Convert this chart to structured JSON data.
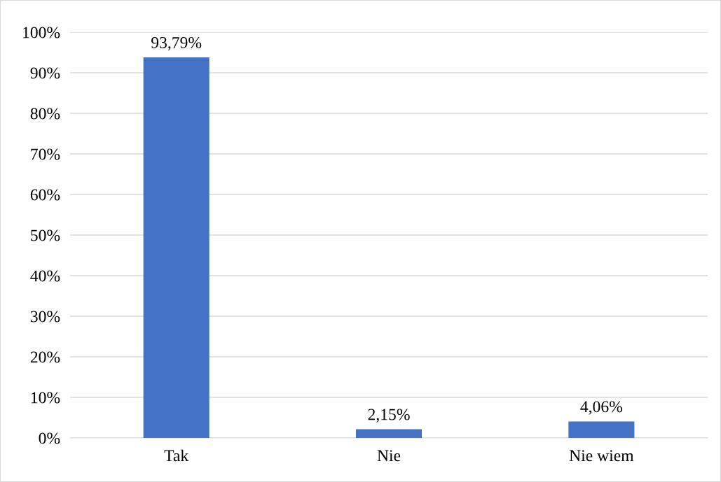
{
  "chart_data": {
    "type": "bar",
    "categories": [
      "Tak",
      "Nie",
      "Nie wiem"
    ],
    "values": [
      93.79,
      2.15,
      4.06
    ],
    "value_labels": [
      "93,79%",
      "2,15%",
      "4,06%"
    ],
    "color": "#4472c4",
    "ylim": [
      0,
      100
    ],
    "yticks": [
      {
        "value": 0,
        "label": "0%"
      },
      {
        "value": 10,
        "label": "10%"
      },
      {
        "value": 20,
        "label": "20%"
      },
      {
        "value": 30,
        "label": "30%"
      },
      {
        "value": 40,
        "label": "40%"
      },
      {
        "value": 50,
        "label": "50%"
      },
      {
        "value": 60,
        "label": "60%"
      },
      {
        "value": 70,
        "label": "70%"
      },
      {
        "value": 80,
        "label": "80%"
      },
      {
        "value": 90,
        "label": "90%"
      },
      {
        "value": 100,
        "label": "100%"
      }
    ],
    "grid": "y"
  }
}
